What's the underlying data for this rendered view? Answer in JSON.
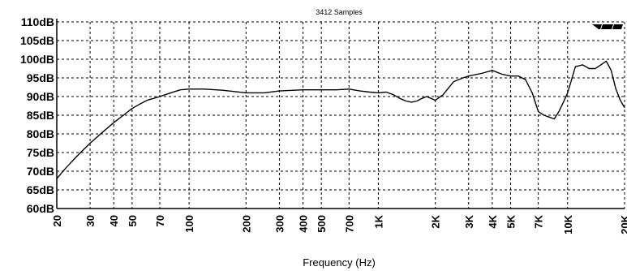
{
  "chart_data": {
    "type": "line",
    "title": "3412 Samples",
    "xlabel": "Frequency (Hz)",
    "ylabel": "",
    "xscale": "log",
    "xlim": [
      20,
      20000
    ],
    "ylim": [
      60,
      110
    ],
    "grid": true,
    "y_ticks": [
      {
        "value": 110,
        "label": "110dB"
      },
      {
        "value": 105,
        "label": "105dB"
      },
      {
        "value": 100,
        "label": "100dB"
      },
      {
        "value": 95,
        "label": "95dB"
      },
      {
        "value": 90,
        "label": "90dB"
      },
      {
        "value": 85,
        "label": "85dB"
      },
      {
        "value": 80,
        "label": "80dB"
      },
      {
        "value": 75,
        "label": "75dB"
      },
      {
        "value": 70,
        "label": "70dB"
      },
      {
        "value": 65,
        "label": "65dB"
      },
      {
        "value": 60,
        "label": "60dB"
      }
    ],
    "x_ticks": [
      {
        "value": 20,
        "label": "20"
      },
      {
        "value": 30,
        "label": "30"
      },
      {
        "value": 40,
        "label": "40"
      },
      {
        "value": 50,
        "label": "50"
      },
      {
        "value": 70,
        "label": "70"
      },
      {
        "value": 100,
        "label": "100"
      },
      {
        "value": 200,
        "label": "200"
      },
      {
        "value": 300,
        "label": "300"
      },
      {
        "value": 400,
        "label": "400"
      },
      {
        "value": 500,
        "label": "500"
      },
      {
        "value": 700,
        "label": "700"
      },
      {
        "value": 1000,
        "label": "1K"
      },
      {
        "value": 2000,
        "label": "2K"
      },
      {
        "value": 3000,
        "label": "3K"
      },
      {
        "value": 4000,
        "label": "4K"
      },
      {
        "value": 5000,
        "label": "5K"
      },
      {
        "value": 7000,
        "label": "7K"
      },
      {
        "value": 10000,
        "label": "10K"
      },
      {
        "value": 20000,
        "label": "20K"
      }
    ],
    "series": [
      {
        "color": "#000000",
        "x": [
          20,
          22,
          25,
          28,
          30,
          35,
          40,
          45,
          50,
          55,
          60,
          65,
          70,
          80,
          90,
          100,
          120,
          150,
          200,
          250,
          300,
          400,
          500,
          600,
          700,
          800,
          900,
          1000,
          1100,
          1200,
          1300,
          1400,
          1500,
          1600,
          1700,
          1800,
          1900,
          2000,
          2200,
          2500,
          2800,
          3000,
          3500,
          4000,
          4500,
          5000,
          5500,
          6000,
          6500,
          7000,
          7500,
          8000,
          8500,
          9000,
          9500,
          10000,
          11000,
          12000,
          13000,
          14000,
          15000,
          16000,
          17000,
          18000,
          19000,
          20000
        ],
        "y": [
          68,
          70.5,
          73.5,
          76,
          77.5,
          80.5,
          83,
          85,
          86.8,
          88,
          89,
          89.5,
          90,
          91,
          91.8,
          92,
          92,
          91.7,
          91,
          91,
          91.5,
          91.8,
          91.8,
          91.8,
          92,
          91.5,
          91.2,
          91,
          91.2,
          90.5,
          89.5,
          88.8,
          88.5,
          88.8,
          89.5,
          90,
          89.5,
          89,
          90.5,
          94,
          95,
          95.5,
          96.2,
          97,
          96,
          95.5,
          95.5,
          94.5,
          91,
          86,
          85,
          84.5,
          84,
          86,
          88.5,
          91,
          98,
          98.5,
          97.5,
          97.5,
          98.5,
          99.5,
          97,
          92,
          89,
          87
        ]
      }
    ]
  }
}
